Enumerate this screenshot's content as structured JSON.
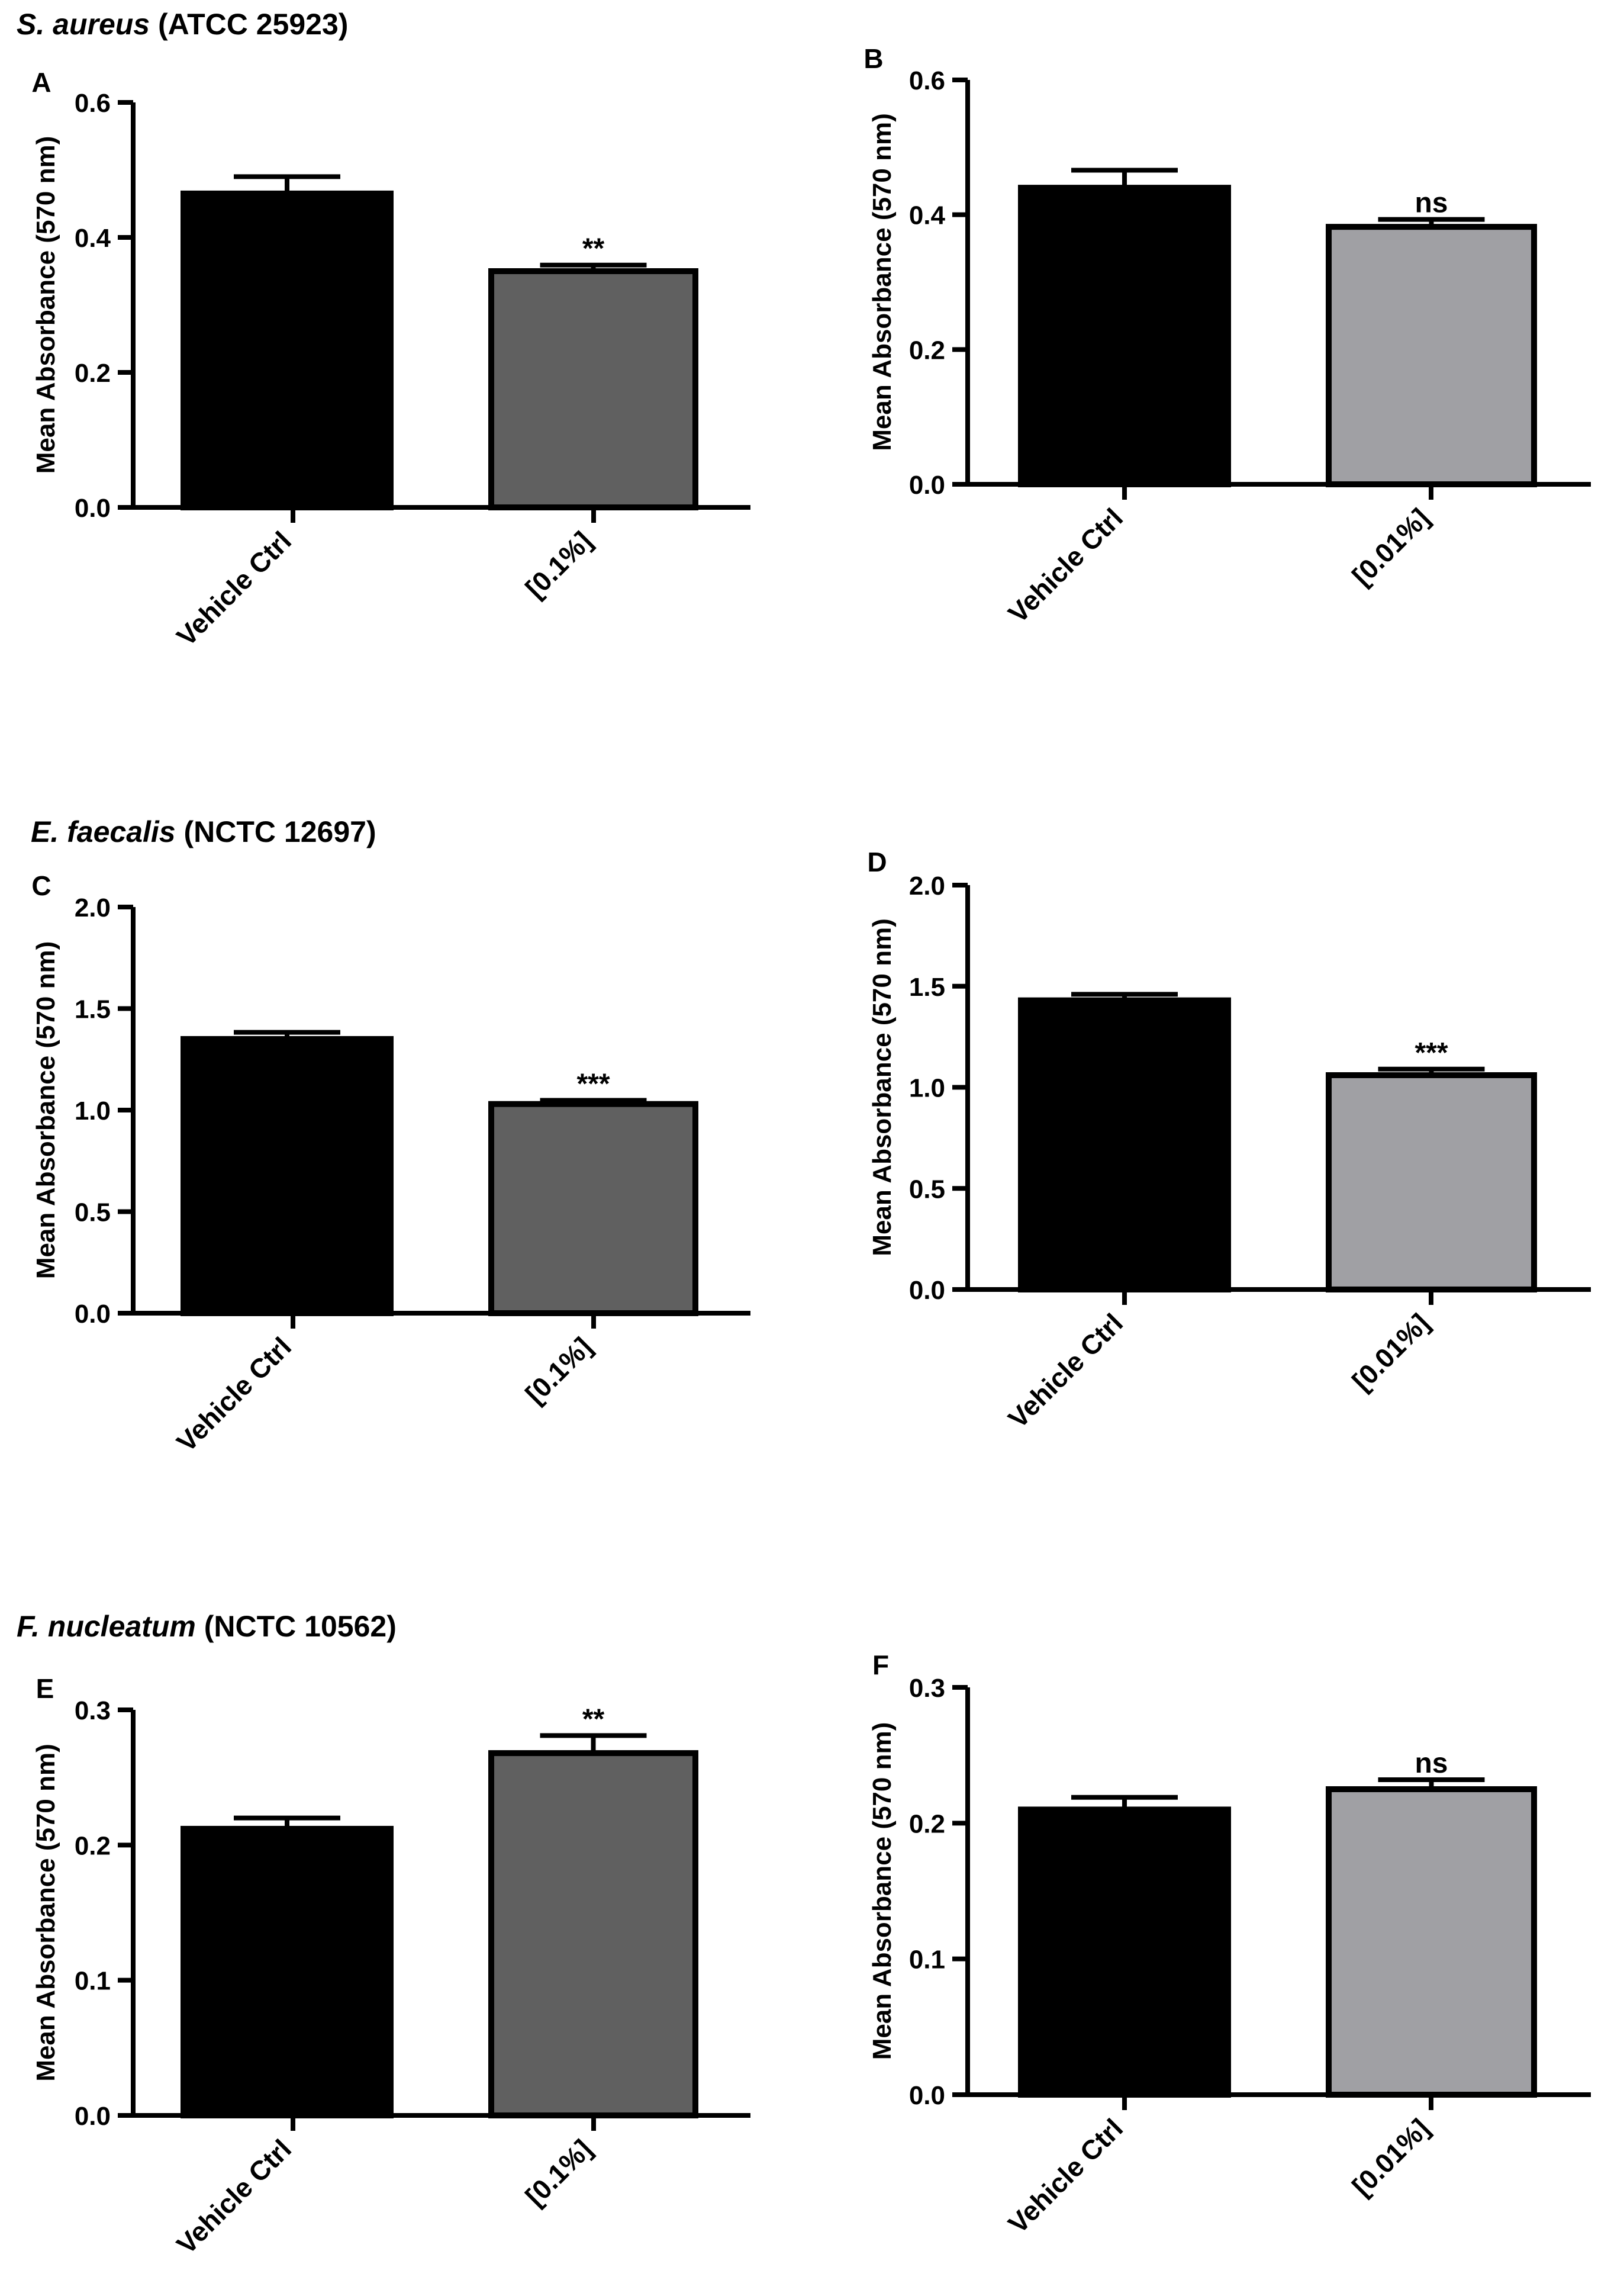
{
  "organisms": [
    {
      "species": "S. aureus",
      "strain": "(ATCC 25923)"
    },
    {
      "species": "E. faecalis",
      "strain": "(NCTC 12697)"
    },
    {
      "species": "F. nucleatum",
      "strain": "(NCTC 10562)"
    }
  ],
  "colors": {
    "black_bar": "#000000",
    "dark_gray_bar": "#606060",
    "light_gray_bar": "#a0a0a4"
  },
  "chart_data": [
    {
      "type": "bar",
      "panel": "A",
      "organism": "S. aureus (ATCC 25923)",
      "ylabel": "Mean Absorbance (570 nm)",
      "ylim": [
        0,
        0.6
      ],
      "yticks": [
        "0.0",
        "0.2",
        "0.4",
        "0.6"
      ],
      "ytick_values": [
        0,
        0.2,
        0.4,
        0.6
      ],
      "categories": [
        "Vehicle Ctrl",
        "[0.1%]"
      ],
      "values": [
        0.465,
        0.35
      ],
      "errors": [
        0.025,
        0.009
      ],
      "significance": [
        "",
        "**"
      ],
      "bar_colors": [
        "#000000",
        "#606060"
      ]
    },
    {
      "type": "bar",
      "panel": "B",
      "organism": "S. aureus (ATCC 25923)",
      "ylabel": "Mean Absorbance (570 nm)",
      "ylim": [
        0,
        0.6
      ],
      "yticks": [
        "0.0",
        "0.2",
        "0.4",
        "0.6"
      ],
      "ytick_values": [
        0,
        0.2,
        0.4,
        0.6
      ],
      "categories": [
        "Vehicle Ctrl",
        "[0.01%]"
      ],
      "values": [
        0.44,
        0.382
      ],
      "errors": [
        0.026,
        0.011
      ],
      "significance": [
        "",
        "ns"
      ],
      "bar_colors": [
        "#000000",
        "#a0a0a4"
      ]
    },
    {
      "type": "bar",
      "panel": "C",
      "organism": "E. faecalis (NCTC 12697)",
      "ylabel": "Mean Absorbance (570 nm)",
      "ylim": [
        0,
        2.0
      ],
      "yticks": [
        "0.0",
        "0.5",
        "1.0",
        "1.5",
        "2.0"
      ],
      "ytick_values": [
        0,
        0.5,
        1.0,
        1.5,
        2.0
      ],
      "categories": [
        "Vehicle Ctrl",
        "[0.1%]"
      ],
      "values": [
        1.35,
        1.03
      ],
      "errors": [
        0.033,
        0.018
      ],
      "significance": [
        "",
        "***"
      ],
      "bar_colors": [
        "#000000",
        "#606060"
      ]
    },
    {
      "type": "bar",
      "panel": "D",
      "organism": "E. faecalis (NCTC 12697)",
      "ylabel": "Mean Absorbance (570 nm)",
      "ylim": [
        0,
        2.0
      ],
      "yticks": [
        "0.0",
        "0.5",
        "1.0",
        "1.5",
        "2.0"
      ],
      "ytick_values": [
        0,
        0.5,
        1.0,
        1.5,
        2.0
      ],
      "categories": [
        "Vehicle Ctrl",
        "[0.01%]"
      ],
      "values": [
        1.43,
        1.06
      ],
      "errors": [
        0.03,
        0.03
      ],
      "significance": [
        "",
        "***"
      ],
      "bar_colors": [
        "#000000",
        "#a0a0a4"
      ]
    },
    {
      "type": "bar",
      "panel": "E",
      "organism": "F. nucleatum (NCTC 10562)",
      "ylabel": "Mean Absorbance (570 nm)",
      "ylim": [
        0,
        0.3
      ],
      "yticks": [
        "0.0",
        "0.1",
        "0.2",
        "0.3"
      ],
      "ytick_values": [
        0,
        0.1,
        0.2,
        0.3
      ],
      "categories": [
        "Vehicle Ctrl",
        "[0.1%]"
      ],
      "values": [
        0.212,
        0.268
      ],
      "errors": [
        0.008,
        0.013
      ],
      "significance": [
        "",
        "**"
      ],
      "bar_colors": [
        "#000000",
        "#606060"
      ]
    },
    {
      "type": "bar",
      "panel": "F",
      "organism": "F. nucleatum (NCTC 10562)",
      "ylabel": "Mean Absorbance (570 nm)",
      "ylim": [
        0,
        0.3
      ],
      "yticks": [
        "0.0",
        "0.1",
        "0.2",
        "0.3"
      ],
      "ytick_values": [
        0,
        0.1,
        0.2,
        0.3
      ],
      "categories": [
        "Vehicle Ctrl",
        "[0.01%]"
      ],
      "values": [
        0.21,
        0.225
      ],
      "errors": [
        0.009,
        0.007
      ],
      "significance": [
        "",
        "ns"
      ],
      "bar_colors": [
        "#000000",
        "#a0a0a4"
      ]
    }
  ]
}
